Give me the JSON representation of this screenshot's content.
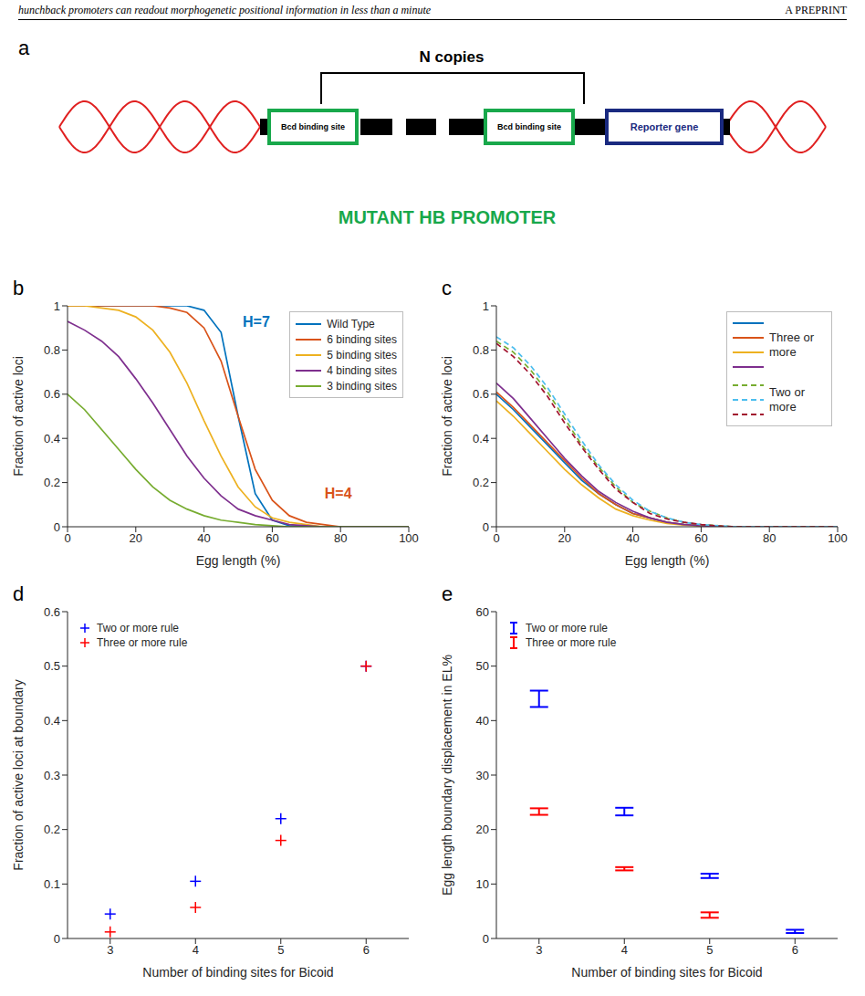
{
  "header": {
    "title": "hunchback promoters can readout morphogenetic positional information in less than a minute",
    "tag": "A PREPRINT"
  },
  "diagram": {
    "letter": "a",
    "copies_label": "N copies",
    "sites": [
      "Bcd binding site",
      "Bcd binding site"
    ],
    "reporter_label": "Reporter gene",
    "caption": "MUTANT HB PROMOTER"
  },
  "chart_data": [
    {
      "letter": "b",
      "type": "line",
      "x": [
        0,
        5,
        10,
        15,
        20,
        25,
        30,
        35,
        40,
        45,
        50,
        55,
        60,
        65,
        70,
        75,
        80,
        85,
        90,
        95,
        100
      ],
      "series": [
        {
          "name": "Wild Type",
          "color": "#0072bd",
          "line_style": "solid",
          "values": [
            1,
            1,
            1,
            1,
            1,
            1,
            1,
            1,
            0.98,
            0.88,
            0.5,
            0.15,
            0.03,
            0.005,
            0,
            0,
            0,
            0,
            0,
            0,
            0
          ]
        },
        {
          "name": "6 binding sites",
          "color": "#d95319",
          "line_style": "solid",
          "values": [
            1,
            1,
            1,
            1,
            1,
            1,
            0.99,
            0.97,
            0.9,
            0.75,
            0.5,
            0.26,
            0.12,
            0.05,
            0.02,
            0.01,
            0,
            0,
            0,
            0,
            0
          ]
        },
        {
          "name": "5 binding sites",
          "color": "#edb120",
          "line_style": "solid",
          "values": [
            1,
            1,
            0.99,
            0.98,
            0.95,
            0.89,
            0.79,
            0.65,
            0.48,
            0.32,
            0.18,
            0.09,
            0.04,
            0.02,
            0.01,
            0,
            0,
            0,
            0,
            0,
            0
          ]
        },
        {
          "name": "4 binding sites",
          "color": "#7e2f8e",
          "line_style": "solid",
          "values": [
            0.93,
            0.89,
            0.84,
            0.77,
            0.67,
            0.56,
            0.44,
            0.32,
            0.22,
            0.14,
            0.08,
            0.05,
            0.03,
            0.01,
            0.005,
            0,
            0,
            0,
            0,
            0,
            0
          ]
        },
        {
          "name": "3 binding sites",
          "color": "#77ac30",
          "line_style": "solid",
          "values": [
            0.6,
            0.53,
            0.44,
            0.35,
            0.26,
            0.18,
            0.12,
            0.08,
            0.05,
            0.03,
            0.02,
            0.01,
            0.005,
            0,
            0,
            0,
            0,
            0,
            0,
            0,
            0
          ]
        }
      ],
      "annotations": [
        {
          "text": "H=7",
          "color": "#0072bd"
        },
        {
          "text": "H=4",
          "color": "#d95319"
        }
      ],
      "xlabel": "Egg length (%)",
      "ylabel": "Fraction of active loci",
      "xlim": [
        0,
        100
      ],
      "xticks": [
        0,
        20,
        40,
        60,
        80,
        100
      ],
      "ylim": [
        0,
        1
      ],
      "yticks": [
        0,
        0.2,
        0.4,
        0.6,
        0.8,
        1
      ],
      "legend": "upper right"
    },
    {
      "letter": "c",
      "type": "line",
      "x": [
        0,
        5,
        10,
        15,
        20,
        25,
        30,
        35,
        40,
        45,
        50,
        55,
        60,
        65,
        70,
        75,
        80,
        85,
        90,
        95,
        100
      ],
      "groups": [
        {
          "name": "Three or more",
          "line_style": "solid",
          "series": [
            {
              "color": "#0072bd",
              "values": [
                0.6,
                0.53,
                0.45,
                0.37,
                0.29,
                0.21,
                0.15,
                0.1,
                0.06,
                0.04,
                0.02,
                0.01,
                0.005,
                0,
                0,
                0,
                0,
                0,
                0,
                0,
                0
              ]
            },
            {
              "color": "#d95319",
              "values": [
                0.61,
                0.54,
                0.46,
                0.38,
                0.3,
                0.22,
                0.15,
                0.1,
                0.06,
                0.04,
                0.02,
                0.01,
                0.005,
                0,
                0,
                0,
                0,
                0,
                0,
                0,
                0
              ]
            },
            {
              "color": "#edb120",
              "values": [
                0.57,
                0.5,
                0.42,
                0.34,
                0.26,
                0.19,
                0.13,
                0.08,
                0.05,
                0.03,
                0.015,
                0.008,
                0.004,
                0,
                0,
                0,
                0,
                0,
                0,
                0,
                0
              ]
            },
            {
              "color": "#7e2f8e",
              "values": [
                0.65,
                0.58,
                0.49,
                0.4,
                0.31,
                0.23,
                0.16,
                0.11,
                0.07,
                0.04,
                0.02,
                0.01,
                0.005,
                0,
                0,
                0,
                0,
                0,
                0,
                0,
                0
              ]
            }
          ]
        },
        {
          "name": "Two or more",
          "line_style": "dashed",
          "series": [
            {
              "color": "#77ac30",
              "values": [
                0.84,
                0.79,
                0.71,
                0.61,
                0.49,
                0.37,
                0.27,
                0.18,
                0.11,
                0.07,
                0.04,
                0.02,
                0.01,
                0.005,
                0,
                0,
                0,
                0,
                0,
                0,
                0
              ]
            },
            {
              "color": "#4dbeee",
              "values": [
                0.86,
                0.81,
                0.73,
                0.63,
                0.51,
                0.39,
                0.28,
                0.19,
                0.12,
                0.07,
                0.04,
                0.02,
                0.01,
                0.005,
                0,
                0,
                0,
                0,
                0,
                0,
                0
              ]
            },
            {
              "color": "#a2142f",
              "values": [
                0.83,
                0.77,
                0.69,
                0.59,
                0.47,
                0.36,
                0.26,
                0.17,
                0.11,
                0.06,
                0.035,
                0.02,
                0.01,
                0.004,
                0,
                0,
                0,
                0,
                0,
                0,
                0
              ]
            }
          ]
        }
      ],
      "xlabel": "Egg length (%)",
      "ylabel": "Fraction of active loci",
      "xlim": [
        0,
        100
      ],
      "xticks": [
        0,
        20,
        40,
        60,
        80,
        100
      ],
      "ylim": [
        0,
        1
      ],
      "yticks": [
        0,
        0.2,
        0.4,
        0.6,
        0.8,
        1
      ],
      "legend": "upper right"
    },
    {
      "letter": "d",
      "type": "scatter",
      "x": [
        3,
        4,
        5,
        6
      ],
      "series": [
        {
          "name": "Two or more rule",
          "color": "#0000ff",
          "marker": "plus",
          "values": [
            0.045,
            0.105,
            0.22,
            0.5
          ]
        },
        {
          "name": "Three or more rule",
          "color": "#ff0000",
          "marker": "plus",
          "values": [
            0.012,
            0.057,
            0.18,
            0.5
          ]
        }
      ],
      "xlabel": "Number of binding sites for Bicoid",
      "ylabel": "Fraction of active loci at boundary",
      "xlim": [
        2.5,
        6.5
      ],
      "xticks": [
        3,
        4,
        5,
        6
      ],
      "ylim": [
        0,
        0.6
      ],
      "yticks": [
        0,
        0.1,
        0.2,
        0.3,
        0.4,
        0.5,
        0.6
      ],
      "legend": "upper left"
    },
    {
      "letter": "e",
      "type": "scatter",
      "x": [
        3,
        4,
        5,
        6
      ],
      "series": [
        {
          "name": "Two or more rule",
          "color": "#0000ff",
          "marker": "none",
          "values": [
            44,
            23.3,
            11.5,
            1.3
          ],
          "errors": [
            1.5,
            0.7,
            0.4,
            0.3
          ]
        },
        {
          "name": "Three or more rule",
          "color": "#ff0000",
          "marker": "none",
          "values": [
            23.3,
            12.8,
            4.3,
            null
          ],
          "errors": [
            0.6,
            0.3,
            0.5,
            null
          ]
        }
      ],
      "xlabel": "Number of binding sites for Bicoid",
      "ylabel": "Egg length boundary displacement in EL%",
      "xlim": [
        2.5,
        6.5
      ],
      "xticks": [
        3,
        4,
        5,
        6
      ],
      "ylim": [
        0,
        60
      ],
      "yticks": [
        0,
        10,
        20,
        30,
        40,
        50,
        60
      ],
      "legend": "upper left"
    }
  ]
}
